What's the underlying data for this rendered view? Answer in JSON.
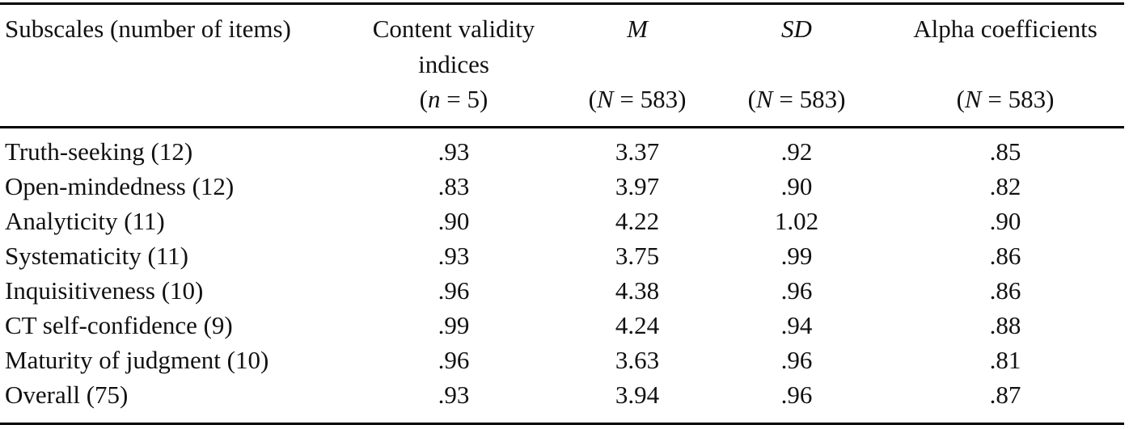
{
  "header": {
    "subscales": "Subscales (number of items)",
    "cvi_line1": "Content validity",
    "cvi_line2": "indices",
    "cvi_n_pre": "(",
    "cvi_n_var": "n",
    "cvi_n_post": " = 5)",
    "m_label": "M",
    "m_n": "(N = 583)",
    "sd_label": "SD",
    "sd_n": "(N = 583)",
    "alpha_label": "Alpha coefficients",
    "alpha_n": "(N = 583)"
  },
  "rows": [
    {
      "label": "Truth-seeking (12)",
      "cvi": ".93",
      "m": "3.37",
      "sd": ".92",
      "alpha": ".85"
    },
    {
      "label": "Open-mindedness (12)",
      "cvi": ".83",
      "m": "3.97",
      "sd": ".90",
      "alpha": ".82"
    },
    {
      "label": "Analyticity (11)",
      "cvi": ".90",
      "m": "4.22",
      "sd": "1.02",
      "alpha": ".90"
    },
    {
      "label": "Systematicity (11)",
      "cvi": ".93",
      "m": "3.75",
      "sd": ".99",
      "alpha": ".86"
    },
    {
      "label": "Inquisitiveness (10)",
      "cvi": ".96",
      "m": "4.38",
      "sd": ".96",
      "alpha": ".86"
    },
    {
      "label": "CT self-confidence (9)",
      "cvi": ".99",
      "m": "4.24",
      "sd": ".94",
      "alpha": ".88"
    },
    {
      "label": "Maturity of judgment (10)",
      "cvi": ".96",
      "m": "3.63",
      "sd": ".96",
      "alpha": ".81"
    },
    {
      "label": "Overall (75)",
      "cvi": ".93",
      "m": "3.94",
      "sd": ".96",
      "alpha": ".87"
    }
  ]
}
